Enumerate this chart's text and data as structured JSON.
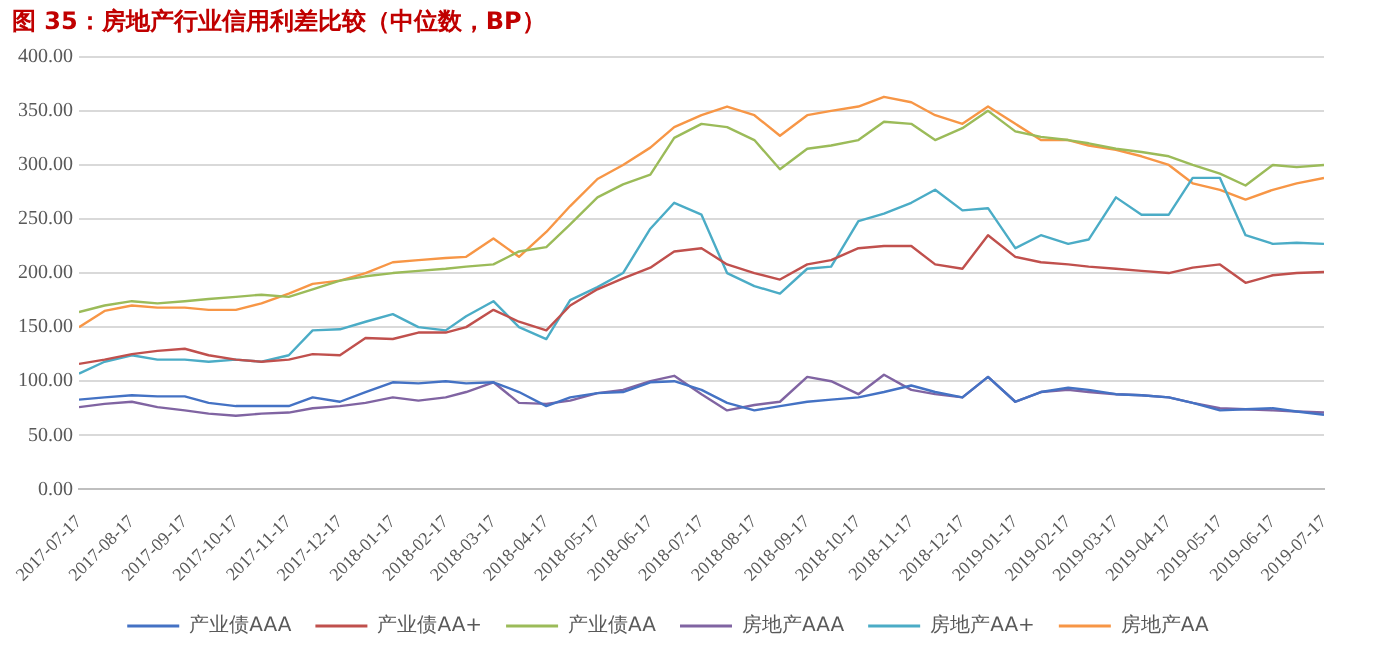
{
  "chart_data": {
    "type": "line",
    "title": "图 35：房地产行业信用利差比较（中位数，BP）",
    "x": [
      "2017-07-17",
      "2017-08-01",
      "2017-08-17",
      "2017-09-01",
      "2017-09-17",
      "2017-10-01",
      "2017-10-17",
      "2017-11-01",
      "2017-11-17",
      "2017-12-01",
      "2017-12-17",
      "2018-01-01",
      "2018-01-17",
      "2018-02-01",
      "2018-02-17",
      "2018-03-01",
      "2018-03-17",
      "2018-04-01",
      "2018-04-17",
      "2018-05-01",
      "2018-05-17",
      "2018-06-01",
      "2018-06-17",
      "2018-07-01",
      "2018-07-17",
      "2018-08-01",
      "2018-08-17",
      "2018-09-01",
      "2018-09-17",
      "2018-10-01",
      "2018-10-17",
      "2018-11-01",
      "2018-11-17",
      "2018-12-01",
      "2018-12-17",
      "2019-01-01",
      "2019-01-17",
      "2019-02-01",
      "2019-02-17",
      "2019-03-01",
      "2019-03-17",
      "2019-04-01",
      "2019-04-17",
      "2019-05-01",
      "2019-05-17",
      "2019-06-01",
      "2019-06-17",
      "2019-07-01",
      "2019-07-17"
    ],
    "series": [
      {
        "name": "产业债AAA",
        "color": "#4472c4",
        "values": [
          83,
          85,
          87,
          86,
          86,
          80,
          77,
          77,
          77,
          85,
          81,
          90,
          99,
          98,
          100,
          98,
          99,
          90,
          77,
          85,
          89,
          90,
          99,
          100,
          92,
          80,
          73,
          77,
          81,
          83,
          85,
          90,
          96,
          90,
          85,
          104,
          81,
          90,
          94,
          92,
          88,
          87,
          85,
          80,
          73,
          74,
          75,
          72,
          69
        ]
      },
      {
        "name": "产业债AA+",
        "color": "#c0504d",
        "values": [
          116,
          120,
          125,
          128,
          130,
          124,
          120,
          118,
          120,
          125,
          124,
          140,
          139,
          145,
          145,
          150,
          166,
          155,
          147,
          170,
          185,
          195,
          205,
          220,
          223,
          208,
          200,
          194,
          208,
          212,
          223,
          225,
          225,
          208,
          204,
          235,
          215,
          210,
          208,
          206,
          204,
          202,
          200,
          205,
          208,
          191,
          198,
          200,
          201
        ]
      },
      {
        "name": "产业债AA",
        "color": "#9bbb59",
        "values": [
          164,
          170,
          174,
          172,
          174,
          176,
          178,
          180,
          178,
          185,
          193,
          197,
          200,
          202,
          204,
          206,
          208,
          220,
          224,
          245,
          270,
          282,
          291,
          325,
          338,
          335,
          323,
          296,
          315,
          318,
          323,
          340,
          338,
          323,
          334,
          350,
          331,
          326,
          323,
          320,
          315,
          312,
          308,
          300,
          292,
          281,
          300,
          298,
          300
        ]
      },
      {
        "name": "房地产AAA",
        "color": "#8064a2",
        "values": [
          76,
          79,
          81,
          76,
          73,
          70,
          68,
          70,
          71,
          75,
          77,
          80,
          85,
          82,
          85,
          90,
          99,
          80,
          79,
          82,
          89,
          92,
          100,
          105,
          88,
          73,
          78,
          81,
          104,
          100,
          88,
          106,
          92,
          88,
          85,
          104,
          81,
          90,
          92,
          90,
          88,
          87,
          85,
          80,
          75,
          74,
          73,
          72,
          71
        ]
      },
      {
        "name": "房地产AA+",
        "color": "#4bacc6",
        "values": [
          107,
          118,
          124,
          120,
          120,
          118,
          120,
          118,
          124,
          147,
          148,
          155,
          162,
          150,
          147,
          160,
          174,
          150,
          139,
          175,
          187,
          200,
          241,
          265,
          254,
          200,
          188,
          181,
          204,
          206,
          248,
          255,
          265,
          277,
          258,
          260,
          223,
          235,
          227,
          231,
          270,
          254,
          254,
          288,
          288,
          235,
          227,
          228,
          227
        ]
      },
      {
        "name": "房地产AA",
        "color": "#f79646",
        "values": [
          150,
          165,
          170,
          168,
          168,
          166,
          166,
          172,
          181,
          190,
          193,
          200,
          210,
          212,
          214,
          215,
          232,
          215,
          238,
          262,
          287,
          300,
          316,
          335,
          346,
          354,
          346,
          327,
          346,
          350,
          354,
          363,
          358,
          346,
          338,
          354,
          338,
          323,
          323,
          318,
          314,
          308,
          300,
          283,
          277,
          268,
          277,
          283,
          288
        ]
      }
    ],
    "xlim": [
      "2017-07-17",
      "2019-07-17"
    ],
    "xticks": [
      "2017-07-17",
      "2017-08-17",
      "2017-09-17",
      "2017-10-17",
      "2017-11-17",
      "2017-12-17",
      "2018-01-17",
      "2018-02-17",
      "2018-03-17",
      "2018-04-17",
      "2018-05-17",
      "2018-06-17",
      "2018-07-17",
      "2018-08-17",
      "2018-09-17",
      "2018-10-17",
      "2018-11-17",
      "2018-12-17",
      "2019-01-17",
      "2019-02-17",
      "2019-03-17",
      "2019-04-17",
      "2019-05-17",
      "2019-06-17",
      "2019-07-17"
    ],
    "ylim": [
      0,
      400
    ],
    "yticks": [
      {
        "value": 0,
        "label": "0.00"
      },
      {
        "value": 50,
        "label": "50.00"
      },
      {
        "value": 100,
        "label": "100.00"
      },
      {
        "value": 150,
        "label": "150.00"
      },
      {
        "value": 200,
        "label": "200.00"
      },
      {
        "value": 250,
        "label": "250.00"
      },
      {
        "value": 300,
        "label": "300.00"
      },
      {
        "value": 350,
        "label": "350.00"
      },
      {
        "value": 400,
        "label": "400.00"
      }
    ],
    "grid": "y",
    "legend": "bottom",
    "marker": "none",
    "line_style": "solid"
  }
}
